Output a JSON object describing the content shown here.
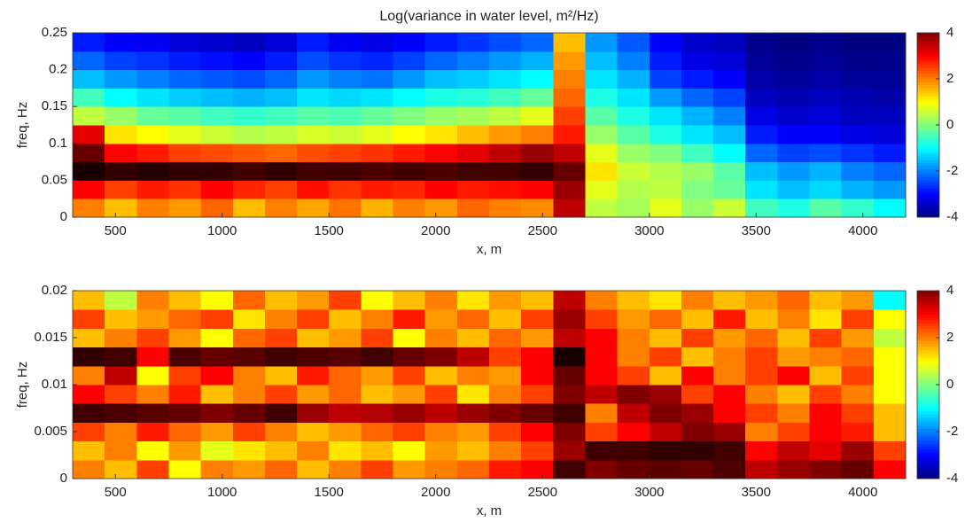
{
  "chart_data": [
    {
      "type": "heatmap",
      "title": "Log(variance in water level, m²/Hz)",
      "x_label": "x, m",
      "y_label": "freq, Hz",
      "colormap": "jet",
      "x": [
        375,
        525,
        675,
        825,
        975,
        1125,
        1275,
        1425,
        1575,
        1725,
        1875,
        2025,
        2175,
        2325,
        2475,
        2625,
        2775,
        2925,
        3075,
        3225,
        3375,
        3525,
        3675,
        3825,
        3975,
        4125
      ],
      "y": [
        0.0125,
        0.0375,
        0.0625,
        0.0875,
        0.1125,
        0.1375,
        0.1625,
        0.1875,
        0.2125,
        0.2375
      ],
      "values": [
        [
          2,
          1.5,
          2,
          1.8,
          2.2,
          1.5,
          2,
          1.7,
          2.1,
          1.6,
          2,
          1.8,
          2.2,
          2,
          1.9,
          3.5,
          0.5,
          0.3,
          0.8,
          0.2,
          0.6,
          -0.5,
          -0.8,
          -0.3,
          -0.6,
          -1
        ],
        [
          3,
          2.5,
          2.8,
          2.6,
          3,
          2.7,
          2.5,
          2.9,
          2.6,
          2.8,
          2.7,
          3,
          2.8,
          2.9,
          3,
          3.8,
          0.8,
          0.4,
          0.5,
          0,
          -0.2,
          -1.2,
          -1.5,
          -1.3,
          -1.6,
          -1.8
        ],
        [
          4.8,
          4.6,
          4.7,
          4.6,
          4.6,
          4.5,
          4.6,
          4.5,
          4.5,
          4.4,
          4.5,
          4.4,
          4.5,
          4.5,
          4.6,
          4.2,
          1.2,
          0.6,
          0.4,
          0.2,
          -0.3,
          -1.5,
          -1.8,
          -1.6,
          -2,
          -2.2
        ],
        [
          4.2,
          3,
          2.8,
          2.5,
          2.4,
          2.3,
          2.2,
          2.4,
          2.5,
          2.6,
          2.8,
          3,
          3.2,
          3.5,
          3.8,
          3.5,
          0.8,
          0.2,
          0,
          -0.5,
          -1,
          -2.2,
          -2.5,
          -2.4,
          -2.6,
          -2.8
        ],
        [
          3.2,
          1.2,
          1,
          0.8,
          0.6,
          0.4,
          0.5,
          0.7,
          0.6,
          0.8,
          1,
          1.2,
          1.5,
          1.8,
          2,
          2.8,
          0.2,
          -0.3,
          -0.8,
          -1.2,
          -1.5,
          -2.8,
          -3,
          -3,
          -3.2,
          -3.3
        ],
        [
          0.5,
          0.2,
          -0.2,
          -0.3,
          -0.5,
          -0.6,
          -0.5,
          -0.3,
          -0.4,
          -0.2,
          0,
          0.2,
          0.3,
          0.5,
          0.8,
          2.5,
          -0.3,
          -0.8,
          -1.2,
          -1.6,
          -2,
          -3.2,
          -3.4,
          -3.3,
          -3.5,
          -3.5
        ],
        [
          -0.5,
          -1,
          -1.2,
          -1.4,
          -1.5,
          -1.6,
          -1.5,
          -1.2,
          -1.3,
          -1.2,
          -1,
          -0.8,
          -0.7,
          -0.5,
          -0.2,
          2.2,
          -0.8,
          -1.2,
          -1.8,
          -2.2,
          -2.5,
          -3.5,
          -3.6,
          -3.5,
          -3.6,
          -3.7
        ],
        [
          -1.5,
          -1.8,
          -2,
          -2.2,
          -2.3,
          -2.4,
          -2.2,
          -1.8,
          -2,
          -2.1,
          -1.8,
          -1.5,
          -1.4,
          -1.2,
          -1,
          2,
          -1.2,
          -1.6,
          -2.5,
          -2.8,
          -3,
          -3.7,
          -3.8,
          -3.7,
          -3.8,
          -3.8
        ],
        [
          -2.2,
          -2.5,
          -2.6,
          -2.8,
          -2.9,
          -3,
          -2.8,
          -2.4,
          -2.6,
          -2.7,
          -2.5,
          -2.2,
          -2,
          -1.8,
          -1.6,
          1.8,
          -1.5,
          -2,
          -2.8,
          -3.2,
          -3.3,
          -3.8,
          -3.9,
          -3.8,
          -3.9,
          -3.9
        ],
        [
          -2.8,
          -3,
          -3.1,
          -3.3,
          -3.4,
          -3.5,
          -3.3,
          -2.8,
          -3.1,
          -3.2,
          -3,
          -2.8,
          -2.6,
          -2.4,
          -2.2,
          1.5,
          -1.8,
          -2.3,
          -3,
          -3.4,
          -3.5,
          -3.9,
          -4,
          -3.9,
          -4,
          -4
        ]
      ],
      "xlim": [
        300,
        4200
      ],
      "xticks": [
        500,
        1000,
        1500,
        2000,
        2500,
        3000,
        3500,
        4000
      ],
      "ylim": [
        0,
        0.25
      ],
      "yticks": [
        0,
        0.05,
        0.1,
        0.15,
        0.2,
        0.25
      ],
      "clim": [
        -4,
        4
      ],
      "cticks": [
        -4,
        -2,
        0,
        2,
        4
      ]
    },
    {
      "type": "heatmap",
      "x_label": "x, m",
      "y_label": "freq, Hz",
      "colormap": "jet",
      "x": [
        375,
        525,
        675,
        825,
        975,
        1125,
        1275,
        1425,
        1575,
        1725,
        1875,
        2025,
        2175,
        2325,
        2475,
        2625,
        2775,
        2925,
        3075,
        3225,
        3375,
        3525,
        3675,
        3825,
        3975,
        4125
      ],
      "y": [
        0.001,
        0.003,
        0.005,
        0.007,
        0.009,
        0.011,
        0.013,
        0.015,
        0.017,
        0.019
      ],
      "values": [
        [
          2,
          1.5,
          2.5,
          1,
          2,
          1.8,
          2.2,
          1.5,
          2,
          2.5,
          1.8,
          2,
          2.2,
          2.8,
          3,
          4.5,
          4,
          4.2,
          4.3,
          4.2,
          4.4,
          3.5,
          3.8,
          4,
          4.2,
          3
        ],
        [
          1.5,
          2,
          1,
          1.8,
          0.8,
          1.2,
          1.5,
          2,
          1.2,
          1.5,
          1,
          1.8,
          1.5,
          2,
          2.5,
          3.8,
          4.5,
          4.5,
          4.6,
          4.6,
          4.5,
          3,
          3.5,
          3.2,
          3.8,
          2.5
        ],
        [
          2.5,
          2,
          2.8,
          2.2,
          1.8,
          2.5,
          2,
          1.5,
          1.8,
          2.2,
          2.5,
          2,
          1.8,
          2.5,
          3,
          4,
          2.5,
          3,
          3.5,
          4,
          3.8,
          2,
          2.5,
          3,
          2.8,
          1.5
        ],
        [
          4.5,
          4.4,
          4.3,
          4.2,
          4,
          4.2,
          4.5,
          3.8,
          3.5,
          3.6,
          3.8,
          3.5,
          3.8,
          4,
          4.2,
          4.5,
          2,
          3.5,
          4,
          3.8,
          3,
          2.5,
          2,
          3,
          2.5,
          1.5
        ],
        [
          3,
          2.5,
          2,
          2.8,
          1.5,
          2,
          2.5,
          1.8,
          2.2,
          1.5,
          1.8,
          2.5,
          1.2,
          2,
          2.5,
          4,
          3.5,
          4,
          3.8,
          2.5,
          3,
          2,
          1.5,
          2.5,
          2,
          1
        ],
        [
          2,
          3.5,
          1,
          2.5,
          3,
          2,
          1.5,
          2.8,
          2.2,
          1.8,
          2.5,
          1.5,
          2,
          1.8,
          3,
          4.2,
          3,
          2.5,
          1.5,
          3,
          2,
          2.5,
          3,
          1.5,
          2.5,
          1
        ],
        [
          4.6,
          4.5,
          3,
          4.4,
          4.2,
          4.3,
          4.5,
          4.4,
          4.3,
          4.5,
          4.2,
          4,
          3.5,
          2.5,
          3,
          4.8,
          3,
          2,
          2.5,
          1.5,
          2,
          2.5,
          1.8,
          2,
          2.2,
          1
        ],
        [
          1.5,
          2,
          2.5,
          1.8,
          1,
          2.2,
          2.5,
          1.5,
          1.8,
          2.5,
          1,
          2,
          1.5,
          2.2,
          1.8,
          3.5,
          3,
          2,
          1.5,
          2.5,
          1.8,
          2.2,
          1.5,
          2.5,
          1.8,
          0.5
        ],
        [
          2.5,
          1.5,
          1.8,
          2.2,
          2.5,
          1.2,
          2,
          2.5,
          1.5,
          2,
          2.8,
          1.8,
          2.2,
          1.5,
          2.5,
          3.8,
          2.5,
          1.8,
          2.2,
          1.5,
          2.8,
          1.5,
          2,
          1.2,
          2.5,
          1
        ],
        [
          1.5,
          0.5,
          2,
          1.5,
          1,
          2.2,
          1.5,
          1.8,
          2.5,
          1,
          1.5,
          2,
          1.2,
          1.8,
          1.5,
          3.5,
          2,
          1.5,
          1.2,
          2,
          1.5,
          1.8,
          2.2,
          1.5,
          1.8,
          -1
        ]
      ],
      "xlim": [
        300,
        4200
      ],
      "xticks": [
        500,
        1000,
        1500,
        2000,
        2500,
        3000,
        3500,
        4000
      ],
      "ylim": [
        0,
        0.02
      ],
      "yticks": [
        0,
        0.005,
        0.01,
        0.015,
        0.02
      ],
      "clim": [
        -4,
        4
      ],
      "cticks": [
        -4,
        -2,
        0,
        2,
        4
      ]
    }
  ]
}
